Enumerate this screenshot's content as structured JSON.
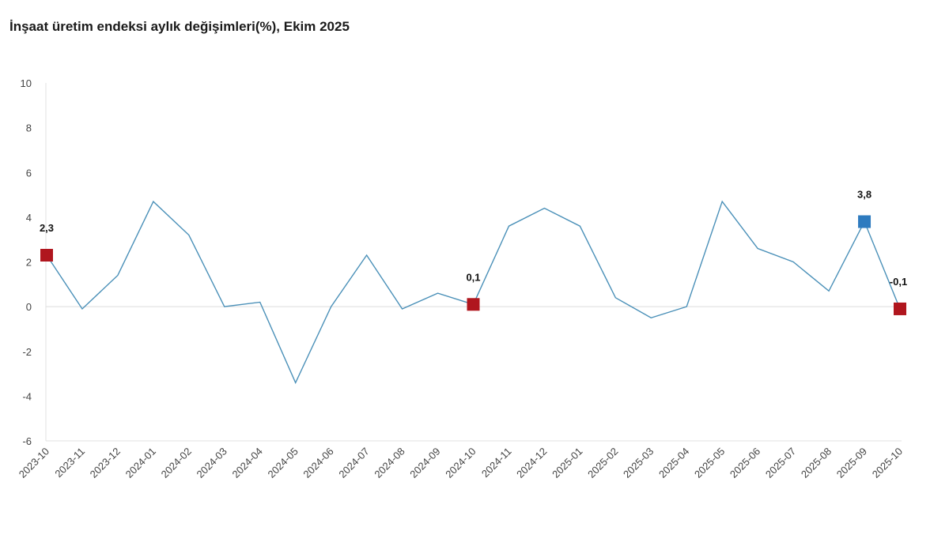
{
  "chart_data": {
    "type": "line",
    "title": "İnşaat üretim endeksi aylık değişimleri(%), Ekim 2025",
    "xlabel": "",
    "ylabel": "",
    "ylim": [
      -6,
      10
    ],
    "yticks": [
      10,
      8,
      6,
      4,
      2,
      0,
      -2,
      -4,
      -6
    ],
    "grid": false,
    "categories": [
      "2023-10",
      "2023-11",
      "2023-12",
      "2024-01",
      "2024-02",
      "2024-03",
      "2024-04",
      "2024-05",
      "2024-06",
      "2024-07",
      "2024-08",
      "2024-09",
      "2024-10",
      "2024-11",
      "2024-12",
      "2025-01",
      "2025-02",
      "2025-03",
      "2025-04",
      "2025-05",
      "2025-06",
      "2025-07",
      "2025-08",
      "2025-09",
      "2025-10"
    ],
    "series": [
      {
        "values": [
          2.3,
          -0.1,
          1.4,
          4.7,
          3.2,
          0.0,
          0.2,
          -3.4,
          0.0,
          2.3,
          -0.1,
          0.6,
          0.1,
          3.6,
          4.4,
          3.6,
          0.4,
          -0.5,
          0.0,
          4.7,
          2.6,
          2.0,
          0.7,
          3.8,
          -0.1
        ],
        "color": "#4a90b8"
      }
    ],
    "highlighted_points": [
      {
        "category": "2023-10",
        "label": "2,3",
        "color": "#b0161e"
      },
      {
        "category": "2024-10",
        "label": "0,1",
        "color": "#b0161e"
      },
      {
        "category": "2025-09",
        "label": "3,8",
        "color": "#2e7bbf"
      },
      {
        "category": "2025-10",
        "label": "-0,1",
        "color": "#b0161e"
      }
    ]
  }
}
